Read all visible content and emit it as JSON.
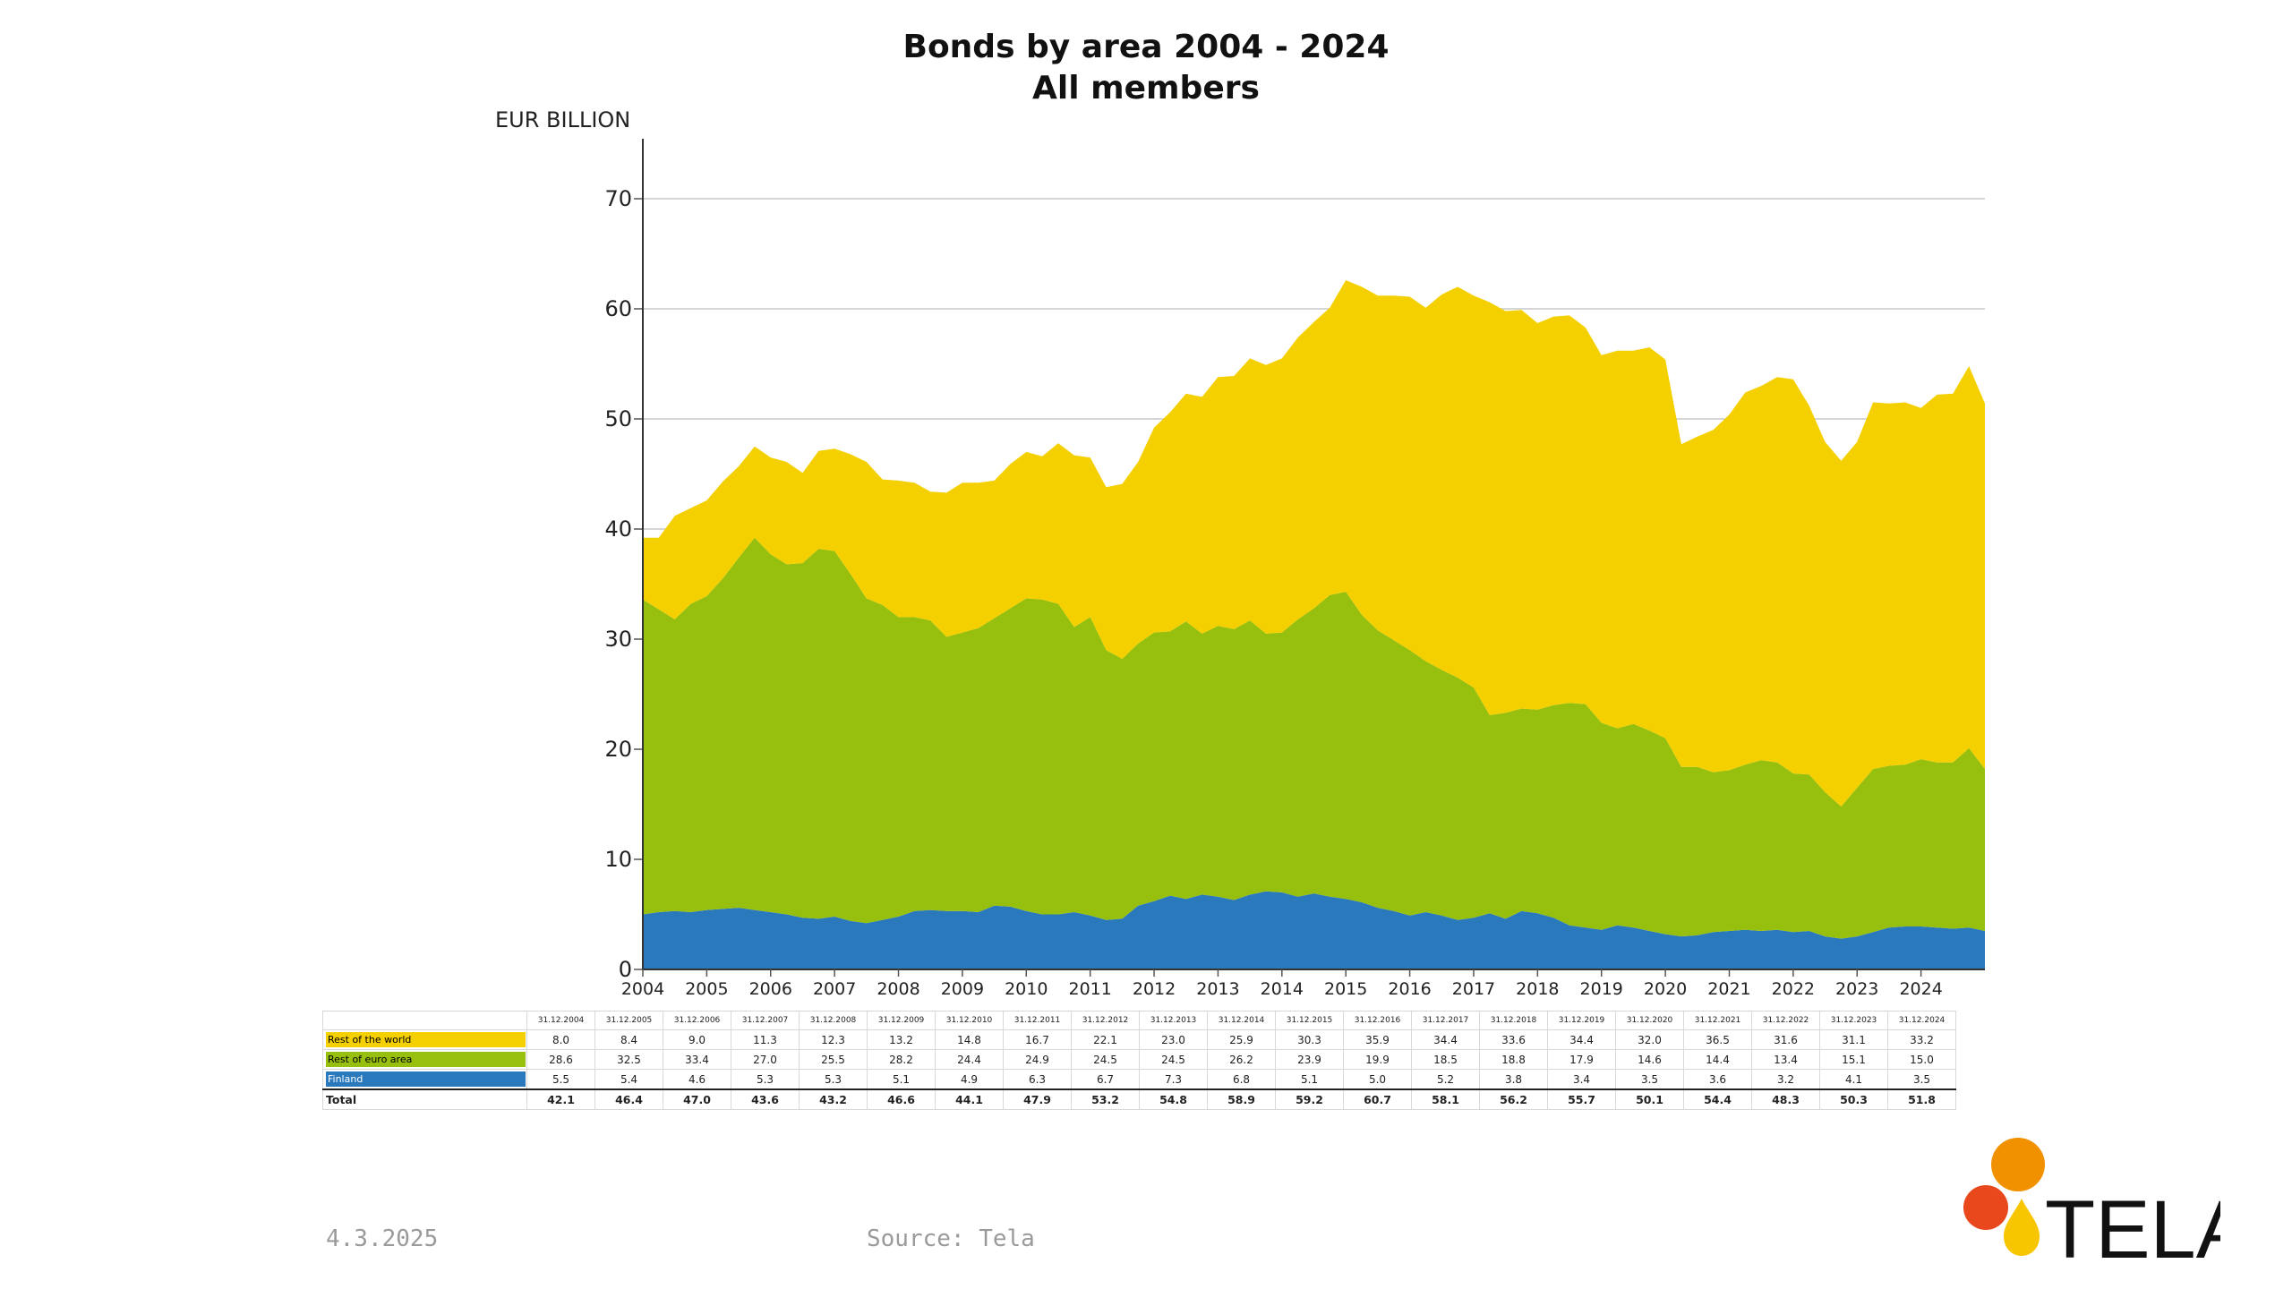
{
  "page": {
    "title_line1": "Bonds by area 2004 - 2024",
    "title_line2": "All members",
    "unit_label": "EUR BILLION",
    "footer_date": "4.3.2025",
    "footer_source": "Source: Tela",
    "logo_text": "TELA"
  },
  "colors": {
    "rest_of_world": "#F5D000",
    "rest_of_euro": "#97BF0D",
    "finland": "#2A79BD",
    "logo_orange": "#F29100",
    "logo_red": "#E8481C",
    "logo_yellow": "#F7C600"
  },
  "chart_data": {
    "type": "area",
    "stacked": true,
    "ylim": [
      0,
      70
    ],
    "yticks": [
      0,
      10,
      20,
      30,
      40,
      50,
      60,
      70
    ],
    "xlim": [
      2004,
      2025
    ],
    "xticks": [
      "2004",
      "2005",
      "2006",
      "2007",
      "2008",
      "2009",
      "2010",
      "2011",
      "2012",
      "2013",
      "2014",
      "2015",
      "2016",
      "2017",
      "2018",
      "2019",
      "2020",
      "2021",
      "2022",
      "2023",
      "2024"
    ],
    "grid": "horizontal",
    "series": [
      {
        "name": "Finland",
        "color_key": "finland",
        "x": [
          2004.0,
          2004.25,
          2004.5,
          2004.75,
          2005.0,
          2005.25,
          2005.5,
          2005.75,
          2006.0,
          2006.25,
          2006.5,
          2006.75,
          2007.0,
          2007.25,
          2007.5,
          2007.75,
          2008.0,
          2008.25,
          2008.5,
          2008.75,
          2009.0,
          2009.25,
          2009.5,
          2009.75,
          2010.0,
          2010.25,
          2010.5,
          2010.75,
          2011.0,
          2011.25,
          2011.5,
          2011.75,
          2012.0,
          2012.25,
          2012.5,
          2012.75,
          2013.0,
          2013.25,
          2013.5,
          2013.75,
          2014.0,
          2014.25,
          2014.5,
          2014.75,
          2015.0,
          2015.25,
          2015.5,
          2015.75,
          2016.0,
          2016.25,
          2016.5,
          2016.75,
          2017.0,
          2017.25,
          2017.5,
          2017.75,
          2018.0,
          2018.25,
          2018.5,
          2018.75,
          2019.0,
          2019.25,
          2019.5,
          2019.75,
          2020.0,
          2020.25,
          2020.5,
          2020.75,
          2021.0,
          2021.25,
          2021.5,
          2021.75,
          2022.0,
          2022.25,
          2022.5,
          2022.75,
          2023.0,
          2023.25,
          2023.5,
          2023.75,
          2024.0,
          2024.25,
          2024.5,
          2024.75,
          2025.0
        ],
        "values": [
          5.0,
          5.2,
          5.3,
          5.2,
          5.4,
          5.5,
          5.6,
          5.4,
          5.2,
          5.0,
          4.7,
          4.6,
          4.8,
          4.4,
          4.2,
          4.5,
          4.8,
          5.3,
          5.4,
          5.3,
          5.3,
          5.2,
          5.8,
          5.7,
          5.3,
          5.0,
          5.0,
          5.2,
          4.9,
          4.5,
          4.6,
          5.8,
          6.2,
          6.7,
          6.4,
          6.8,
          6.6,
          6.3,
          6.8,
          7.1,
          7.0,
          6.6,
          6.9,
          6.6,
          6.4,
          6.1,
          5.6,
          5.3,
          4.9,
          5.2,
          4.9,
          4.5,
          4.7,
          5.1,
          4.6,
          5.3,
          5.1,
          4.7,
          4.0,
          3.8,
          3.6,
          4.0,
          3.8,
          3.5,
          3.2,
          3.0,
          3.1,
          3.4,
          3.5,
          3.6,
          3.5,
          3.6,
          3.4,
          3.5,
          3.0,
          2.8,
          3.0,
          3.4,
          3.8,
          3.9,
          3.9,
          3.8,
          3.7,
          3.8,
          3.5
        ]
      },
      {
        "name": "Rest of euro area",
        "color_key": "rest_of_euro",
        "x": [
          2004.0,
          2004.25,
          2004.5,
          2004.75,
          2005.0,
          2005.25,
          2005.5,
          2005.75,
          2006.0,
          2006.25,
          2006.5,
          2006.75,
          2007.0,
          2007.25,
          2007.5,
          2007.75,
          2008.0,
          2008.25,
          2008.5,
          2008.75,
          2009.0,
          2009.25,
          2009.5,
          2009.75,
          2010.0,
          2010.25,
          2010.5,
          2010.75,
          2011.0,
          2011.25,
          2011.5,
          2011.75,
          2012.0,
          2012.25,
          2012.5,
          2012.75,
          2013.0,
          2013.25,
          2013.5,
          2013.75,
          2014.0,
          2014.25,
          2014.5,
          2014.75,
          2015.0,
          2015.25,
          2015.5,
          2015.75,
          2016.0,
          2016.25,
          2016.5,
          2016.75,
          2017.0,
          2017.25,
          2017.5,
          2017.75,
          2018.0,
          2018.25,
          2018.5,
          2018.75,
          2019.0,
          2019.25,
          2019.5,
          2019.75,
          2020.0,
          2020.25,
          2020.5,
          2020.75,
          2021.0,
          2021.25,
          2021.5,
          2021.75,
          2022.0,
          2022.25,
          2022.5,
          2022.75,
          2023.0,
          2023.25,
          2023.5,
          2023.75,
          2024.0,
          2024.25,
          2024.5,
          2024.75,
          2025.0
        ],
        "values": [
          28.6,
          27.5,
          26.5,
          28.0,
          28.5,
          30.0,
          31.8,
          33.8,
          32.5,
          31.8,
          32.2,
          33.6,
          33.2,
          31.5,
          29.5,
          28.6,
          27.2,
          26.7,
          26.3,
          24.9,
          25.3,
          25.8,
          26.1,
          27.1,
          28.4,
          28.6,
          28.2,
          25.9,
          27.1,
          24.5,
          23.6,
          23.8,
          24.4,
          24.0,
          25.2,
          23.7,
          24.6,
          24.6,
          24.9,
          23.4,
          23.6,
          25.2,
          25.9,
          27.4,
          27.9,
          26.1,
          25.2,
          24.6,
          24.1,
          22.8,
          22.3,
          22.0,
          20.9,
          18.0,
          18.7,
          18.4,
          18.5,
          19.3,
          20.2,
          20.3,
          18.8,
          17.9,
          18.5,
          18.2,
          17.8,
          15.4,
          15.3,
          14.5,
          14.6,
          15.0,
          15.5,
          15.2,
          14.4,
          14.2,
          13.1,
          12.0,
          13.5,
          14.8,
          14.7,
          14.7,
          15.2,
          15.0,
          15.1,
          16.3,
          14.7
        ]
      },
      {
        "name": "Rest of the world",
        "color_key": "rest_of_world",
        "x": [
          2004.0,
          2004.25,
          2004.5,
          2004.75,
          2005.0,
          2005.25,
          2005.5,
          2005.75,
          2006.0,
          2006.25,
          2006.5,
          2006.75,
          2007.0,
          2007.25,
          2007.5,
          2007.75,
          2008.0,
          2008.25,
          2008.5,
          2008.75,
          2009.0,
          2009.25,
          2009.5,
          2009.75,
          2010.0,
          2010.25,
          2010.5,
          2010.75,
          2011.0,
          2011.25,
          2011.5,
          2011.75,
          2012.0,
          2012.25,
          2012.5,
          2012.75,
          2013.0,
          2013.25,
          2013.5,
          2013.75,
          2014.0,
          2014.25,
          2014.5,
          2014.75,
          2015.0,
          2015.25,
          2015.5,
          2015.75,
          2016.0,
          2016.25,
          2016.5,
          2016.75,
          2017.0,
          2017.25,
          2017.5,
          2017.75,
          2018.0,
          2018.25,
          2018.5,
          2018.75,
          2019.0,
          2019.25,
          2019.5,
          2019.75,
          2020.0,
          2020.25,
          2020.5,
          2020.75,
          2021.0,
          2021.25,
          2021.5,
          2021.75,
          2022.0,
          2022.25,
          2022.5,
          2022.75,
          2023.0,
          2023.25,
          2023.5,
          2023.75,
          2024.0,
          2024.25,
          2024.5,
          2024.75,
          2025.0
        ],
        "values": [
          5.6,
          6.5,
          9.4,
          8.7,
          8.7,
          8.8,
          8.3,
          8.3,
          8.8,
          9.3,
          8.2,
          8.9,
          9.3,
          10.9,
          12.4,
          11.4,
          12.4,
          12.2,
          11.7,
          13.1,
          13.6,
          13.2,
          12.5,
          13.1,
          13.3,
          13.0,
          14.6,
          15.6,
          14.5,
          14.8,
          15.9,
          16.5,
          18.6,
          19.9,
          20.7,
          21.5,
          22.6,
          23.0,
          23.8,
          24.4,
          24.9,
          25.6,
          26.0,
          26.1,
          28.3,
          29.8,
          30.4,
          31.3,
          32.1,
          32.1,
          34.1,
          35.5,
          35.6,
          37.5,
          36.5,
          36.2,
          35.1,
          35.3,
          35.2,
          34.2,
          33.4,
          34.3,
          33.9,
          34.8,
          34.4,
          29.3,
          30.0,
          31.1,
          32.3,
          33.8,
          34.0,
          35.0,
          35.8,
          33.5,
          31.8,
          31.4,
          31.4,
          33.3,
          32.9,
          32.9,
          31.9,
          33.4,
          33.5,
          34.7,
          33.2
        ]
      }
    ],
    "table": {
      "headers": [
        "31.12.2004",
        "31.12.2005",
        "31.12.2006",
        "31.12.2007",
        "31.12.2008",
        "31.12.2009",
        "31.12.2010",
        "31.12.2011",
        "31.12.2012",
        "31.12.2013",
        "31.12.2014",
        "31.12.2015",
        "31.12.2016",
        "31.12.2017",
        "31.12.2018",
        "31.12.2019",
        "31.12.2020",
        "31.12.2021",
        "31.12.2022",
        "31.12.2023",
        "31.12.2024"
      ],
      "rows": [
        {
          "label": "Rest of the world",
          "color_key": "rest_of_world",
          "values": [
            "8.0",
            "8.4",
            "9.0",
            "11.3",
            "12.3",
            "13.2",
            "14.8",
            "16.7",
            "22.1",
            "23.0",
            "25.9",
            "30.3",
            "35.9",
            "34.4",
            "33.6",
            "34.4",
            "32.0",
            "36.5",
            "31.6",
            "31.1",
            "33.2"
          ]
        },
        {
          "label": "Rest of euro area",
          "color_key": "rest_of_euro",
          "values": [
            "28.6",
            "32.5",
            "33.4",
            "27.0",
            "25.5",
            "28.2",
            "24.4",
            "24.9",
            "24.5",
            "24.5",
            "26.2",
            "23.9",
            "19.9",
            "18.5",
            "18.8",
            "17.9",
            "14.6",
            "14.4",
            "13.4",
            "15.1",
            "15.0"
          ]
        },
        {
          "label": "Finland",
          "color_key": "finland",
          "values": [
            "5.5",
            "5.4",
            "4.6",
            "5.3",
            "5.3",
            "5.1",
            "4.9",
            "6.3",
            "6.7",
            "7.3",
            "6.8",
            "5.1",
            "5.0",
            "5.2",
            "3.8",
            "3.4",
            "3.5",
            "3.6",
            "3.2",
            "4.1",
            "3.5"
          ]
        }
      ],
      "total": {
        "label": "Total",
        "values": [
          "42.1",
          "46.4",
          "47.0",
          "43.6",
          "43.2",
          "46.6",
          "44.1",
          "47.9",
          "53.2",
          "54.8",
          "58.9",
          "59.2",
          "60.7",
          "58.1",
          "56.2",
          "55.7",
          "50.1",
          "54.4",
          "48.3",
          "50.3",
          "51.8"
        ]
      }
    }
  }
}
